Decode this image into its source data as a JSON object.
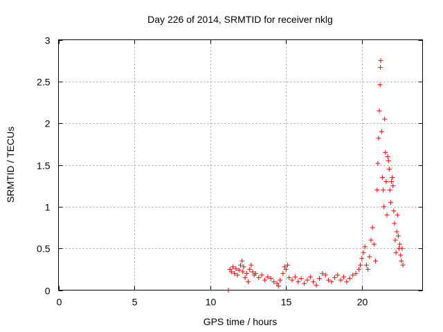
{
  "chart_data": {
    "type": "scatter",
    "title": "Day 226 of 2014, SRMTID for receiver nklg",
    "xlabel": "GPS time / hours",
    "ylabel": "SRMTID / TECUs",
    "xlim": [
      0,
      24
    ],
    "ylim": [
      0,
      3
    ],
    "xticks": [
      0,
      5,
      10,
      15,
      20
    ],
    "xtick_labels": [
      "0",
      "5",
      "10",
      "15",
      "20"
    ],
    "yticks": [
      0,
      0.5,
      1,
      1.5,
      2,
      2.5,
      3
    ],
    "ytick_labels": [
      "0",
      "0.5",
      "1",
      "1.5",
      "2",
      "2.5",
      "3"
    ],
    "grid": true,
    "marker": "+",
    "color": "#ff0000",
    "series": [
      {
        "name": "SRMTID",
        "points": [
          [
            11.2,
            0.0
          ],
          [
            11.3,
            0.25
          ],
          [
            11.4,
            0.22
          ],
          [
            11.5,
            0.28
          ],
          [
            11.6,
            0.2
          ],
          [
            11.7,
            0.26
          ],
          [
            11.8,
            0.18
          ],
          [
            11.9,
            0.24
          ],
          [
            12.0,
            0.3
          ],
          [
            12.1,
            0.35
          ],
          [
            12.15,
            0.22
          ],
          [
            12.2,
            0.28
          ],
          [
            12.3,
            0.15
          ],
          [
            12.4,
            0.2
          ],
          [
            12.5,
            0.1
          ],
          [
            12.6,
            0.25
          ],
          [
            12.7,
            0.3
          ],
          [
            12.8,
            0.22
          ],
          [
            12.9,
            0.18
          ],
          [
            13.0,
            0.2
          ],
          [
            13.2,
            0.15
          ],
          [
            13.4,
            0.18
          ],
          [
            13.6,
            0.12
          ],
          [
            13.8,
            0.16
          ],
          [
            14.0,
            0.14
          ],
          [
            14.2,
            0.1
          ],
          [
            14.4,
            0.08
          ],
          [
            14.5,
            0.05
          ],
          [
            14.6,
            0.12
          ],
          [
            14.8,
            0.2
          ],
          [
            14.9,
            0.28
          ],
          [
            15.0,
            0.25
          ],
          [
            15.1,
            0.3
          ],
          [
            15.2,
            0.15
          ],
          [
            15.4,
            0.12
          ],
          [
            15.6,
            0.16
          ],
          [
            15.8,
            0.1
          ],
          [
            16.0,
            0.14
          ],
          [
            16.2,
            0.08
          ],
          [
            16.4,
            0.12
          ],
          [
            16.6,
            0.16
          ],
          [
            16.8,
            0.1
          ],
          [
            17.0,
            0.06
          ],
          [
            17.2,
            0.14
          ],
          [
            17.4,
            0.2
          ],
          [
            17.6,
            0.18
          ],
          [
            17.8,
            0.12
          ],
          [
            18.0,
            0.1
          ],
          [
            18.2,
            0.15
          ],
          [
            18.4,
            0.18
          ],
          [
            18.6,
            0.12
          ],
          [
            18.8,
            0.16
          ],
          [
            19.0,
            0.1
          ],
          [
            19.2,
            0.14
          ],
          [
            19.4,
            0.18
          ],
          [
            19.6,
            0.2
          ],
          [
            19.8,
            0.25
          ],
          [
            19.9,
            0.3
          ],
          [
            20.0,
            0.38
          ],
          [
            20.1,
            0.45
          ],
          [
            20.2,
            0.52
          ],
          [
            20.3,
            0.3
          ],
          [
            20.4,
            0.25
          ],
          [
            20.5,
            0.4
          ],
          [
            20.6,
            0.6
          ],
          [
            20.7,
            0.75
          ],
          [
            20.8,
            0.55
          ],
          [
            20.9,
            0.35
          ],
          [
            21.0,
            1.2
          ],
          [
            21.05,
            1.52
          ],
          [
            21.1,
            1.82
          ],
          [
            21.15,
            2.15
          ],
          [
            21.2,
            2.46
          ],
          [
            21.22,
            2.67
          ],
          [
            21.24,
            2.75
          ],
          [
            21.3,
            1.9
          ],
          [
            21.35,
            1.35
          ],
          [
            21.4,
            1.2
          ],
          [
            21.45,
            1.0
          ],
          [
            21.5,
            2.05
          ],
          [
            21.55,
            1.65
          ],
          [
            21.6,
            1.3
          ],
          [
            21.65,
            0.9
          ],
          [
            21.7,
            1.6
          ],
          [
            21.75,
            1.55
          ],
          [
            21.8,
            1.45
          ],
          [
            21.85,
            1.2
          ],
          [
            21.9,
            1.05
          ],
          [
            21.95,
            1.3
          ],
          [
            22.0,
            1.35
          ],
          [
            22.05,
            1.25
          ],
          [
            22.1,
            0.95
          ],
          [
            22.15,
            0.8
          ],
          [
            22.2,
            0.6
          ],
          [
            22.25,
            0.45
          ],
          [
            22.3,
            0.7
          ],
          [
            22.35,
            0.9
          ],
          [
            22.4,
            0.65
          ],
          [
            22.45,
            0.5
          ],
          [
            22.5,
            0.55
          ],
          [
            22.55,
            0.42
          ],
          [
            22.6,
            0.35
          ],
          [
            22.65,
            0.5
          ],
          [
            22.7,
            0.3
          ]
        ]
      }
    ]
  }
}
